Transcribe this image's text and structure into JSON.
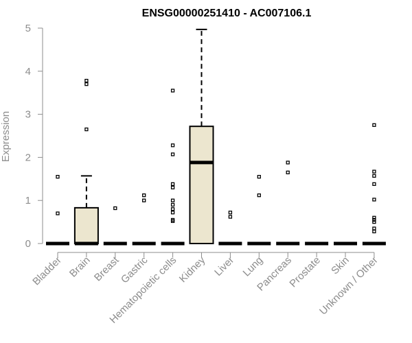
{
  "chart_data": {
    "type": "box",
    "title": "ENSG00000251410 - AC007106.1",
    "xlabel": "",
    "ylabel": "Expression",
    "ylim": [
      0,
      5
    ],
    "yticks": [
      "0",
      "1",
      "2",
      "3",
      "4",
      "5"
    ],
    "categories": [
      "Bladder",
      "Brain",
      "Breast",
      "Gastric",
      "Hematopoietic cells",
      "Kidney",
      "Liver",
      "Lung",
      "Pancreas",
      "Prostate",
      "Skin",
      "Unknown / Other"
    ],
    "boxes": [
      {
        "q1": 0,
        "median": 0,
        "q3": 0,
        "whisker_low": 0,
        "whisker_high": 0,
        "outliers": [
          0.7,
          1.55
        ]
      },
      {
        "q1": 0,
        "median": 0,
        "q3": 0.83,
        "whisker_low": 0,
        "whisker_high": 1.57,
        "outliers": [
          2.65,
          3.7,
          3.78
        ]
      },
      {
        "q1": 0,
        "median": 0,
        "q3": 0,
        "whisker_low": 0,
        "whisker_high": 0,
        "outliers": [
          0.82
        ]
      },
      {
        "q1": 0,
        "median": 0,
        "q3": 0,
        "whisker_low": 0,
        "whisker_high": 0,
        "outliers": [
          1.0,
          1.12
        ]
      },
      {
        "q1": 0,
        "median": 0,
        "q3": 0,
        "whisker_low": 0,
        "whisker_high": 0,
        "outliers": [
          0.52,
          0.55,
          0.72,
          0.8,
          0.9,
          1.0,
          1.3,
          1.38,
          2.07,
          2.28,
          3.55
        ]
      },
      {
        "q1": 0,
        "median": 1.88,
        "q3": 2.72,
        "whisker_low": 0,
        "whisker_high": 4.97,
        "outliers": []
      },
      {
        "q1": 0,
        "median": 0,
        "q3": 0,
        "whisker_low": 0,
        "whisker_high": 0,
        "outliers": [
          0.62,
          0.72
        ]
      },
      {
        "q1": 0,
        "median": 0,
        "q3": 0,
        "whisker_low": 0,
        "whisker_high": 0,
        "outliers": [
          1.12,
          1.55
        ]
      },
      {
        "q1": 0,
        "median": 0,
        "q3": 0,
        "whisker_low": 0,
        "whisker_high": 0,
        "outliers": [
          1.65,
          1.88
        ]
      },
      {
        "q1": 0,
        "median": 0,
        "q3": 0,
        "whisker_low": 0,
        "whisker_high": 0,
        "outliers": []
      },
      {
        "q1": 0,
        "median": 0,
        "q3": 0,
        "whisker_low": 0,
        "whisker_high": 0,
        "outliers": []
      },
      {
        "q1": 0,
        "median": 0,
        "q3": 0,
        "whisker_low": 0,
        "whisker_high": 0,
        "outliers": [
          0.28,
          0.35,
          0.5,
          0.55,
          0.6,
          1.02,
          1.38,
          1.57,
          1.67,
          2.75
        ]
      }
    ],
    "colors": {
      "box_fill": "#ece6cf",
      "box_stroke": "#000000",
      "axis": "#8c8c8c",
      "text_muted": "#8c8c8c",
      "title": "#000000"
    },
    "grid": false,
    "legend": "none"
  }
}
